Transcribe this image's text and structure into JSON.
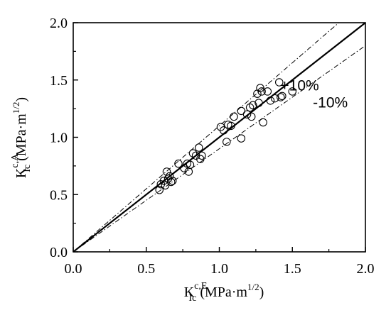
{
  "chart_data": {
    "type": "scatter",
    "xlim": [
      0.0,
      2.0
    ],
    "ylim": [
      0.0,
      2.0
    ],
    "x_ticks": [
      "0.0",
      "0.5",
      "1.0",
      "1.5",
      "2.0"
    ],
    "y_ticks": [
      "0.0",
      "0.5",
      "1.0",
      "1.5",
      "2.0"
    ],
    "xlabel": {
      "base": "K",
      "sub": "Ic",
      "sup": "c,E",
      "unit_pre": " (MPa·m",
      "unit_sup": "1/2",
      "unit_post": ")"
    },
    "ylabel": {
      "base": "K",
      "sub": "Ic",
      "sup": "c,A",
      "unit_pre": " (MPa·m",
      "unit_sup": "1/2",
      "unit_post": ")"
    },
    "grid": false,
    "lines": [
      {
        "style": "solid",
        "slope": 1.0
      },
      {
        "style": "dashdot",
        "slope": 1.1
      },
      {
        "style": "dashdot",
        "slope": 0.9
      }
    ],
    "annotations": [
      {
        "text": "+10%",
        "x": 1.55,
        "y": 1.41
      },
      {
        "text": "-10%",
        "x": 1.76,
        "y": 1.26
      }
    ],
    "points": [
      {
        "x": 0.59,
        "y": 0.54
      },
      {
        "x": 0.6,
        "y": 0.59
      },
      {
        "x": 0.62,
        "y": 0.62
      },
      {
        "x": 0.63,
        "y": 0.58
      },
      {
        "x": 0.64,
        "y": 0.7
      },
      {
        "x": 0.65,
        "y": 0.64
      },
      {
        "x": 0.66,
        "y": 0.66
      },
      {
        "x": 0.67,
        "y": 0.61
      },
      {
        "x": 0.68,
        "y": 0.62
      },
      {
        "x": 0.72,
        "y": 0.77
      },
      {
        "x": 0.76,
        "y": 0.73
      },
      {
        "x": 0.78,
        "y": 0.77
      },
      {
        "x": 0.79,
        "y": 0.7
      },
      {
        "x": 0.8,
        "y": 0.76
      },
      {
        "x": 0.82,
        "y": 0.86
      },
      {
        "x": 0.84,
        "y": 0.84
      },
      {
        "x": 0.86,
        "y": 0.91
      },
      {
        "x": 0.87,
        "y": 0.81
      },
      {
        "x": 0.88,
        "y": 0.84
      },
      {
        "x": 1.01,
        "y": 1.09
      },
      {
        "x": 1.03,
        "y": 1.06
      },
      {
        "x": 1.05,
        "y": 0.96
      },
      {
        "x": 1.06,
        "y": 1.11
      },
      {
        "x": 1.08,
        "y": 1.1
      },
      {
        "x": 1.1,
        "y": 1.18
      },
      {
        "x": 1.15,
        "y": 1.23
      },
      {
        "x": 1.15,
        "y": 0.99
      },
      {
        "x": 1.19,
        "y": 1.2
      },
      {
        "x": 1.21,
        "y": 1.26
      },
      {
        "x": 1.22,
        "y": 1.18
      },
      {
        "x": 1.23,
        "y": 1.28
      },
      {
        "x": 1.26,
        "y": 1.38
      },
      {
        "x": 1.27,
        "y": 1.3
      },
      {
        "x": 1.28,
        "y": 1.43
      },
      {
        "x": 1.29,
        "y": 1.4
      },
      {
        "x": 1.3,
        "y": 1.13
      },
      {
        "x": 1.33,
        "y": 1.4
      },
      {
        "x": 1.35,
        "y": 1.32
      },
      {
        "x": 1.38,
        "y": 1.34
      },
      {
        "x": 1.41,
        "y": 1.48
      },
      {
        "x": 1.42,
        "y": 1.35
      },
      {
        "x": 1.43,
        "y": 1.36
      },
      {
        "x": 1.5,
        "y": 1.4
      }
    ]
  }
}
